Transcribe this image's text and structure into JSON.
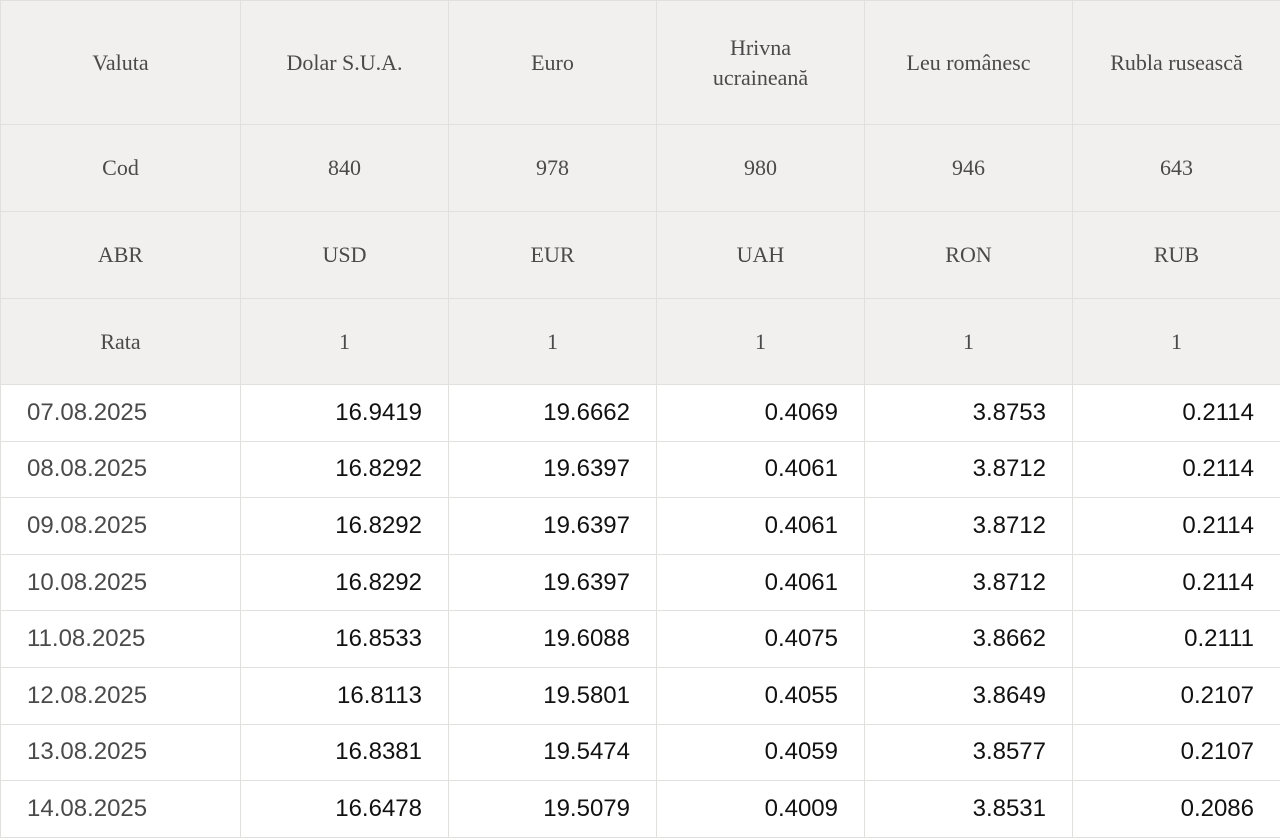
{
  "table": {
    "header": {
      "row_label": "Valuta",
      "currencies": [
        "Dolar S.U.A.",
        "Euro",
        "Hrivna ucraineană",
        "Leu românesc",
        "Rubla rusească"
      ]
    },
    "code_row": {
      "label": "Cod",
      "values": [
        "840",
        "978",
        "980",
        "946",
        "643"
      ]
    },
    "abbr_row": {
      "label": "ABR",
      "values": [
        "USD",
        "EUR",
        "UAH",
        "RON",
        "RUB"
      ]
    },
    "rate_row": {
      "label": "Rata",
      "values": [
        "1",
        "1",
        "1",
        "1",
        "1"
      ]
    },
    "rows": [
      {
        "date": "07.08.2025",
        "values": [
          "16.9419",
          "19.6662",
          "0.4069",
          "3.8753",
          "0.2114"
        ]
      },
      {
        "date": "08.08.2025",
        "values": [
          "16.8292",
          "19.6397",
          "0.4061",
          "3.8712",
          "0.2114"
        ]
      },
      {
        "date": "09.08.2025",
        "values": [
          "16.8292",
          "19.6397",
          "0.4061",
          "3.8712",
          "0.2114"
        ]
      },
      {
        "date": "10.08.2025",
        "values": [
          "16.8292",
          "19.6397",
          "0.4061",
          "3.8712",
          "0.2114"
        ]
      },
      {
        "date": "11.08.2025",
        "values": [
          "16.8533",
          "19.6088",
          "0.4075",
          "3.8662",
          "0.2111"
        ]
      },
      {
        "date": "12.08.2025",
        "values": [
          "16.8113",
          "19.5801",
          "0.4055",
          "3.8649",
          "0.2107"
        ]
      },
      {
        "date": "13.08.2025",
        "values": [
          "16.8381",
          "19.5474",
          "0.4059",
          "3.8577",
          "0.2107"
        ]
      },
      {
        "date": "14.08.2025",
        "values": [
          "16.6478",
          "19.5079",
          "0.4009",
          "3.8531",
          "0.2086"
        ]
      }
    ]
  },
  "colors": {
    "header_bg": "#f1f0ee",
    "border": "#e2e0dd",
    "header_text": "#4a4a4a",
    "value_text": "#111111"
  }
}
